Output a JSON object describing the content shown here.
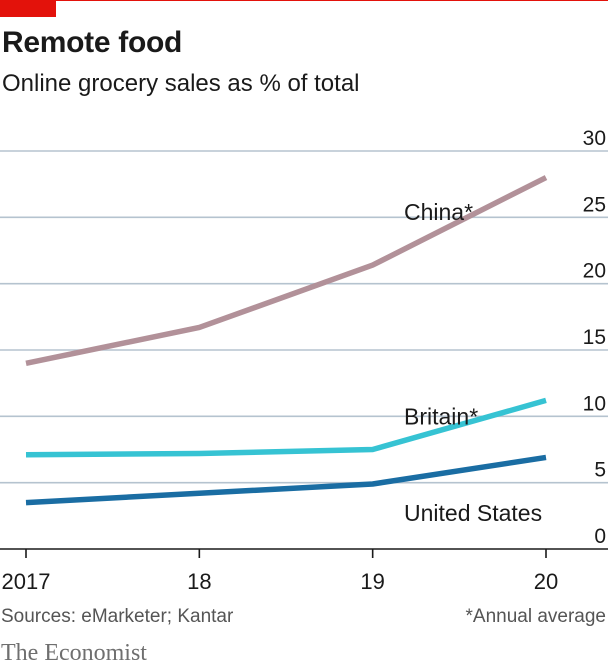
{
  "header": {
    "title": "Remote food",
    "subtitle": "Online grocery sales as % of total"
  },
  "footer": {
    "sources": "Sources: eMarketer; Kantar",
    "note": "*Annual average",
    "brand": "The Economist"
  },
  "colors": {
    "china": "#b29199",
    "britain": "#36c3d3",
    "us": "#1a6da3",
    "accent": "#e3120b",
    "grid": "#b5c3cf",
    "axis": "#1a1a1a"
  },
  "chart_data": {
    "type": "line",
    "title": "Remote food",
    "subtitle": "Online grocery sales as % of total",
    "x": [
      2017,
      2018,
      2019,
      2020
    ],
    "x_tick_labels": [
      "2017",
      "18",
      "19",
      "20"
    ],
    "ylim": [
      0,
      30
    ],
    "y_ticks": [
      0,
      5,
      10,
      15,
      20,
      25,
      30
    ],
    "grid": true,
    "y_axis_side": "right",
    "series": [
      {
        "name": "China*",
        "values": [
          14.0,
          16.7,
          21.4,
          28.0
        ],
        "color": "#b29199"
      },
      {
        "name": "Britain*",
        "values": [
          7.1,
          7.2,
          7.5,
          11.2
        ],
        "color": "#36c3d3"
      },
      {
        "name": "United States",
        "values": [
          3.5,
          4.2,
          4.9,
          6.9
        ],
        "color": "#1a6da3"
      }
    ]
  }
}
